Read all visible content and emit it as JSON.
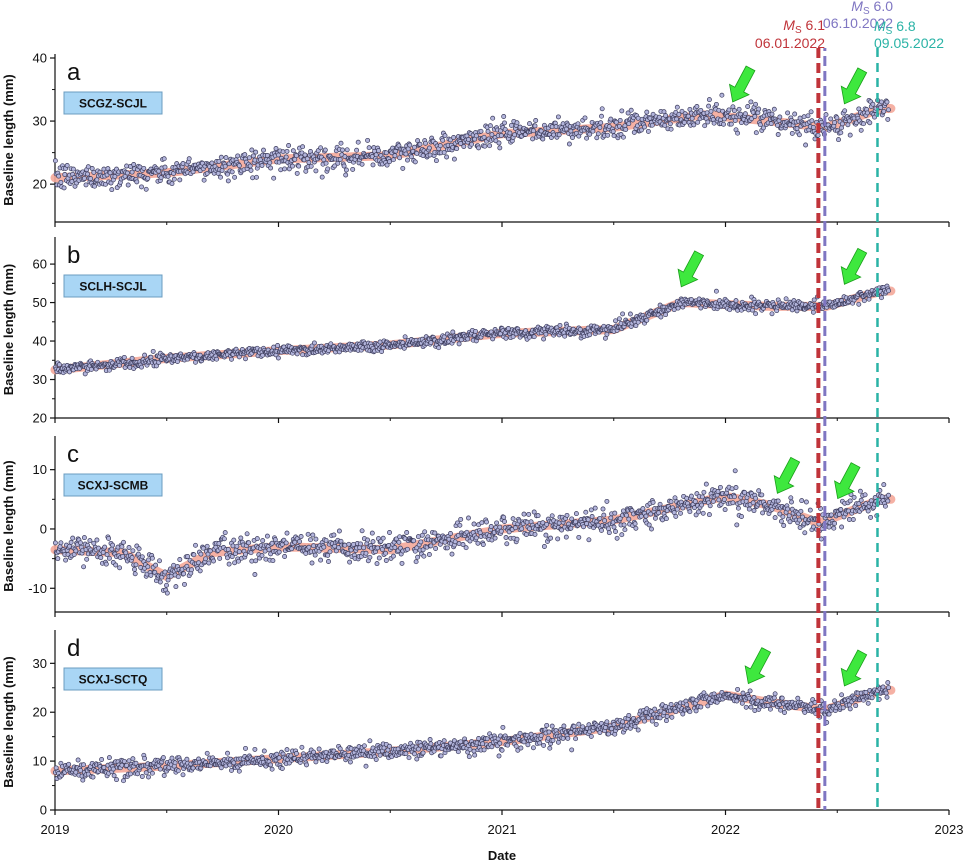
{
  "colors": {
    "point_fill": "#b3b5dc",
    "point_stroke": "#3c3c5c",
    "trend": "#f4a99a",
    "arrow": "#3ee83e",
    "arrow_stroke": "#1a9e1a",
    "label_box": "#a9d6f5",
    "eq1": "#c0343a",
    "eq2": "#7f76c2",
    "eq3": "#2ab3a6"
  },
  "earthquakes": [
    {
      "mag_prefix": "M",
      "mag_sub": "S",
      "mag_value": " 6.1",
      "date": "06.01.2022",
      "x": 2022.42,
      "color": "#c0343a"
    },
    {
      "mag_prefix": "M",
      "mag_sub": "S",
      "mag_value": " 6.0",
      "date": "06.10.2022",
      "x": 2022.44,
      "color": "#7f76c2"
    },
    {
      "mag_prefix": "M",
      "mag_sub": "S",
      "mag_value": " 6.8",
      "date": "09.05.2022",
      "x": 2022.68,
      "color": "#2ab3a6"
    }
  ],
  "chart_data": [
    {
      "type": "scatter",
      "panel": "a",
      "label": "SCGZ-SCJL",
      "ylabel": "Baseline length (mm)",
      "ylim": [
        14,
        40
      ],
      "yticks": [
        20,
        30,
        40
      ],
      "xlim": [
        2019,
        2023
      ],
      "trend": {
        "x": [
          2019.0,
          2019.5,
          2020.0,
          2020.5,
          2021.0,
          2021.5,
          2021.9,
          2022.2,
          2022.45,
          2022.7
        ],
        "y": [
          21.0,
          21.8,
          24.0,
          24.5,
          28.0,
          29.0,
          31.0,
          30.0,
          29.0,
          32.0
        ]
      },
      "noise": 1.2,
      "arrows": [
        2022.05,
        2022.55
      ]
    },
    {
      "type": "scatter",
      "panel": "b",
      "label": "SCLH-SCJL",
      "ylabel": "Baseline length (mm)",
      "ylim": [
        20,
        66
      ],
      "yticks": [
        20,
        30,
        40,
        50,
        60
      ],
      "xlim": [
        2019,
        2023
      ],
      "trend": {
        "x": [
          2019.0,
          2019.5,
          2020.0,
          2020.5,
          2021.0,
          2021.5,
          2021.8,
          2022.2,
          2022.45,
          2022.7
        ],
        "y": [
          32.5,
          35.5,
          37.5,
          39.0,
          42.0,
          43.0,
          50.0,
          49.0,
          49.0,
          53.0
        ]
      },
      "noise": 0.9,
      "arrows": [
        2021.82,
        2022.55
      ]
    },
    {
      "type": "scatter",
      "panel": "c",
      "label": "SCXJ-SCMB",
      "ylabel": "Baseline length (mm)",
      "ylim": [
        -14,
        15
      ],
      "yticks": [
        -10,
        0,
        10
      ],
      "xlim": [
        2019,
        2023
      ],
      "trend": {
        "x": [
          2019.0,
          2019.3,
          2019.5,
          2019.7,
          2020.0,
          2020.5,
          2021.0,
          2021.5,
          2022.0,
          2022.2,
          2022.42,
          2022.7
        ],
        "y": [
          -3.5,
          -4.0,
          -8.0,
          -4.0,
          -3.0,
          -3.5,
          0.0,
          1.5,
          5.5,
          4.0,
          1.0,
          5.0
        ]
      },
      "noise": 1.5,
      "arrows": [
        2022.25,
        2022.52
      ]
    },
    {
      "type": "scatter",
      "panel": "d",
      "label": "SCXJ-SCTQ",
      "ylabel": "Baseline length (mm)",
      "ylim": [
        0,
        36
      ],
      "yticks": [
        0,
        10,
        20,
        30
      ],
      "xlim": [
        2019,
        2023
      ],
      "trend": {
        "x": [
          2019.0,
          2019.5,
          2020.0,
          2020.5,
          2021.0,
          2021.5,
          2022.0,
          2022.2,
          2022.45,
          2022.7
        ],
        "y": [
          8.0,
          9.0,
          10.5,
          12.0,
          14.0,
          17.0,
          23.5,
          22.0,
          20.5,
          24.5
        ]
      },
      "noise": 1.1,
      "arrows": [
        2022.12,
        2022.55
      ]
    }
  ],
  "xaxis": {
    "title": "Date",
    "ticks": [
      "2019",
      "2020",
      "2021",
      "2022",
      "2023"
    ],
    "tick_values": [
      2019,
      2020,
      2021,
      2022,
      2023
    ]
  }
}
